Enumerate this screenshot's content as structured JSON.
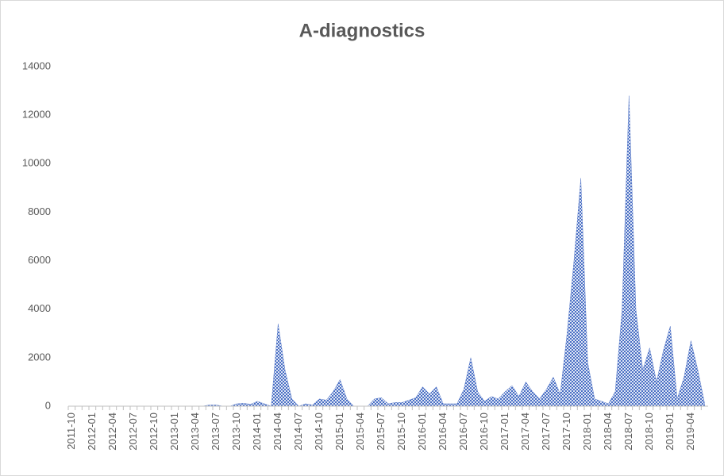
{
  "chart_data": {
    "type": "area",
    "title": "A-diagnostics",
    "categories": [
      "2011-10",
      null,
      null,
      "2012-01",
      null,
      null,
      "2012-04",
      null,
      null,
      "2012-07",
      null,
      null,
      "2012-10",
      null,
      null,
      "2013-01",
      null,
      null,
      "2013-04",
      null,
      null,
      "2013-07",
      null,
      null,
      "2013-10",
      null,
      null,
      "2014-01",
      null,
      null,
      "2014-04",
      null,
      null,
      "2014-07",
      null,
      null,
      "2014-10",
      null,
      null,
      "2015-01",
      null,
      null,
      "2015-04",
      null,
      null,
      "2015-07",
      null,
      null,
      "2015-10",
      null,
      null,
      "2016-01",
      null,
      null,
      "2016-04",
      null,
      null,
      "2016-07",
      null,
      null,
      "2016-10",
      null,
      null,
      "2017-01",
      null,
      null,
      "2017-04",
      null,
      null,
      "2017-07",
      null,
      null,
      "2017-10",
      null,
      null,
      "2018-01",
      null,
      null,
      "2018-04",
      null,
      null,
      "2018-07",
      null,
      null,
      "2018-10",
      null,
      null,
      "2019-01",
      null,
      null,
      "2019-04",
      null,
      null
    ],
    "values": [
      0,
      0,
      0,
      0,
      0,
      0,
      0,
      0,
      0,
      0,
      0,
      0,
      0,
      0,
      0,
      0,
      0,
      0,
      0,
      0,
      50,
      50,
      0,
      0,
      100,
      120,
      80,
      200,
      100,
      0,
      3400,
      1500,
      300,
      0,
      100,
      50,
      300,
      250,
      600,
      1100,
      300,
      0,
      0,
      0,
      300,
      350,
      100,
      150,
      150,
      250,
      350,
      800,
      500,
      800,
      100,
      100,
      100,
      700,
      2000,
      600,
      200,
      400,
      300,
      600,
      850,
      400,
      1000,
      600,
      300,
      700,
      1200,
      500,
      3000,
      6000,
      9400,
      1800,
      300,
      200,
      100,
      600,
      4000,
      12800,
      4000,
      1500,
      2400,
      1000,
      2300,
      3300,
      300,
      1200,
      2700,
      1500,
      100
    ],
    "color": "#4a6fc4",
    "ylim": [
      0,
      14000
    ],
    "yticks": [
      0,
      2000,
      4000,
      6000,
      8000,
      10000,
      12000,
      14000
    ]
  }
}
